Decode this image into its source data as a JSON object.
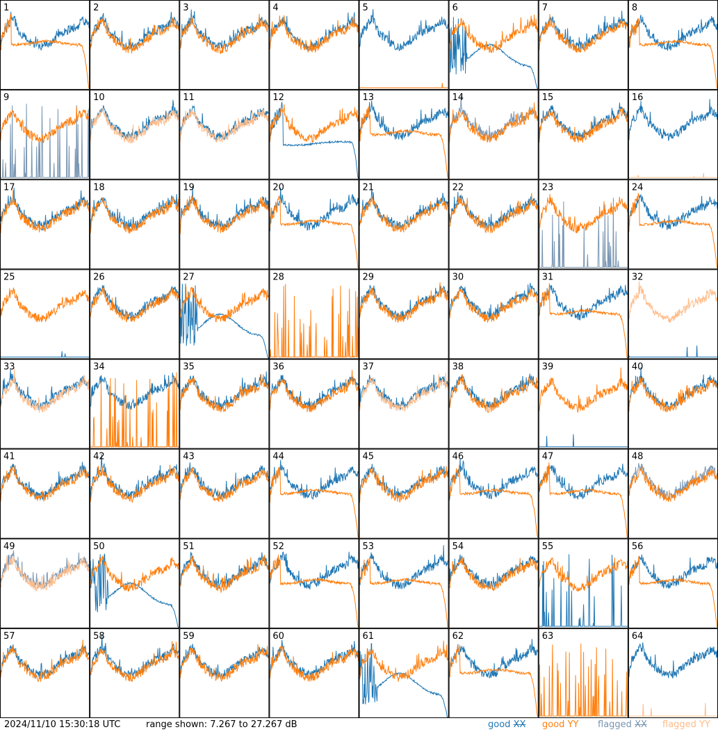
{
  "footer": {
    "timestamp": "2024/11/10 15:30:18 UTC",
    "range_text": "range shown: 7.267 to 27.267 dB"
  },
  "legend": {
    "good_xx": {
      "word": "good",
      "pol": "XX",
      "color": "#1f77b4"
    },
    "good_yy": {
      "word": "good",
      "pol": "YY",
      "color": "#ff7f0e"
    },
    "flagged_xx": {
      "word": "flagged",
      "pol": "XX",
      "color": "#7895b2"
    },
    "flagged_yy": {
      "word": "flagged",
      "pol": "YY",
      "color": "#ffbb88"
    }
  },
  "chart_data": {
    "type": "line",
    "layout": "8x8 small multiples",
    "ylim": [
      7.267,
      27.267
    ],
    "yunit": "dB",
    "panels": [
      {
        "id": 1,
        "xx": "normal",
        "yy": "rolloff",
        "xx_flag": false,
        "yy_flag": false
      },
      {
        "id": 2,
        "xx": "normal",
        "yy": "normal",
        "xx_flag": false,
        "yy_flag": false
      },
      {
        "id": 3,
        "xx": "normal",
        "yy": "normal",
        "xx_flag": false,
        "yy_flag": false
      },
      {
        "id": 4,
        "xx": "normal",
        "yy": "normal",
        "xx_flag": false,
        "yy_flag": false
      },
      {
        "id": 5,
        "xx": "normal",
        "yy": "dead",
        "xx_flag": false,
        "yy_flag": false
      },
      {
        "id": 6,
        "xx": "hump",
        "yy": "normal",
        "xx_flag": false,
        "yy_flag": false
      },
      {
        "id": 7,
        "xx": "normal",
        "yy": "normal",
        "xx_flag": false,
        "yy_flag": false
      },
      {
        "id": 8,
        "xx": "normal",
        "yy": "rolloff",
        "xx_flag": false,
        "yy_flag": false
      },
      {
        "id": 9,
        "xx": "spiky",
        "yy": "normal",
        "xx_flag": true,
        "yy_flag": false
      },
      {
        "id": 10,
        "xx": "normal",
        "yy": "normal",
        "xx_flag": false,
        "yy_flag": true
      },
      {
        "id": 11,
        "xx": "normal",
        "yy": "normal",
        "xx_flag": false,
        "yy_flag": true
      },
      {
        "id": 12,
        "xx": "flat",
        "yy": "normal",
        "xx_flag": false,
        "yy_flag": false
      },
      {
        "id": 13,
        "xx": "normal",
        "yy": "rolloff",
        "xx_flag": false,
        "yy_flag": false
      },
      {
        "id": 14,
        "xx": "normal",
        "yy": "normal",
        "xx_flag": true,
        "yy_flag": false
      },
      {
        "id": 15,
        "xx": "normal",
        "yy": "normal",
        "xx_flag": false,
        "yy_flag": false
      },
      {
        "id": 16,
        "xx": "normal",
        "yy": "dead",
        "xx_flag": false,
        "yy_flag": true
      },
      {
        "id": 17,
        "xx": "normal",
        "yy": "normal",
        "xx_flag": false,
        "yy_flag": false
      },
      {
        "id": 18,
        "xx": "normal",
        "yy": "normal",
        "xx_flag": false,
        "yy_flag": false
      },
      {
        "id": 19,
        "xx": "normal",
        "yy": "normal",
        "xx_flag": false,
        "yy_flag": false
      },
      {
        "id": 20,
        "xx": "normal",
        "yy": "rolloff",
        "xx_flag": false,
        "yy_flag": false
      },
      {
        "id": 21,
        "xx": "normal",
        "yy": "normal",
        "xx_flag": false,
        "yy_flag": false
      },
      {
        "id": 22,
        "xx": "normal",
        "yy": "normal",
        "xx_flag": false,
        "yy_flag": false
      },
      {
        "id": 23,
        "xx": "spiky",
        "yy": "normal",
        "xx_flag": true,
        "yy_flag": false
      },
      {
        "id": 24,
        "xx": "normal",
        "yy": "rolloff",
        "xx_flag": false,
        "yy_flag": false
      },
      {
        "id": 25,
        "xx": "dead",
        "yy": "normal",
        "xx_flag": false,
        "yy_flag": false
      },
      {
        "id": 26,
        "xx": "normal",
        "yy": "normal",
        "xx_flag": false,
        "yy_flag": false
      },
      {
        "id": 27,
        "xx": "hump",
        "yy": "normal",
        "xx_flag": false,
        "yy_flag": false
      },
      {
        "id": 28,
        "xx": "none",
        "yy": "spiky",
        "xx_flag": false,
        "yy_flag": false
      },
      {
        "id": 29,
        "xx": "normal",
        "yy": "normal",
        "xx_flag": false,
        "yy_flag": false
      },
      {
        "id": 30,
        "xx": "normal",
        "yy": "normal",
        "xx_flag": false,
        "yy_flag": false
      },
      {
        "id": 31,
        "xx": "normal",
        "yy": "rolloff",
        "xx_flag": false,
        "yy_flag": false
      },
      {
        "id": 32,
        "xx": "dead",
        "yy": "normal",
        "xx_flag": false,
        "yy_flag": true
      },
      {
        "id": 33,
        "xx": "normal",
        "yy": "normal",
        "xx_flag": false,
        "yy_flag": true
      },
      {
        "id": 34,
        "xx": "normal",
        "yy": "spiky",
        "xx_flag": false,
        "yy_flag": false
      },
      {
        "id": 35,
        "xx": "normal",
        "yy": "normal",
        "xx_flag": false,
        "yy_flag": false
      },
      {
        "id": 36,
        "xx": "normal",
        "yy": "normal",
        "xx_flag": false,
        "yy_flag": false
      },
      {
        "id": 37,
        "xx": "normal",
        "yy": "normal",
        "xx_flag": false,
        "yy_flag": true
      },
      {
        "id": 38,
        "xx": "normal",
        "yy": "normal",
        "xx_flag": false,
        "yy_flag": false
      },
      {
        "id": 39,
        "xx": "dead",
        "yy": "normal",
        "xx_flag": false,
        "yy_flag": false
      },
      {
        "id": 40,
        "xx": "normal",
        "yy": "normal",
        "xx_flag": false,
        "yy_flag": false
      },
      {
        "id": 41,
        "xx": "normal",
        "yy": "normal",
        "xx_flag": false,
        "yy_flag": false
      },
      {
        "id": 42,
        "xx": "normal",
        "yy": "normal",
        "xx_flag": false,
        "yy_flag": false
      },
      {
        "id": 43,
        "xx": "normal",
        "yy": "normal",
        "xx_flag": false,
        "yy_flag": false
      },
      {
        "id": 44,
        "xx": "normal",
        "yy": "rolloff",
        "xx_flag": false,
        "yy_flag": false
      },
      {
        "id": 45,
        "xx": "normal",
        "yy": "normal",
        "xx_flag": false,
        "yy_flag": false
      },
      {
        "id": 46,
        "xx": "normal",
        "yy": "rolloff",
        "xx_flag": false,
        "yy_flag": false
      },
      {
        "id": 47,
        "xx": "normal",
        "yy": "rolloff",
        "xx_flag": false,
        "yy_flag": false
      },
      {
        "id": 48,
        "xx": "normal",
        "yy": "normal",
        "xx_flag": true,
        "yy_flag": false
      },
      {
        "id": 49,
        "xx": "normal",
        "yy": "normal",
        "xx_flag": true,
        "yy_flag": true
      },
      {
        "id": 50,
        "xx": "hump",
        "yy": "normal",
        "xx_flag": false,
        "yy_flag": false
      },
      {
        "id": 51,
        "xx": "normal",
        "yy": "normal",
        "xx_flag": false,
        "yy_flag": false
      },
      {
        "id": 52,
        "xx": "normal",
        "yy": "rolloff",
        "xx_flag": false,
        "yy_flag": false
      },
      {
        "id": 53,
        "xx": "normal",
        "yy": "rolloff",
        "xx_flag": false,
        "yy_flag": false
      },
      {
        "id": 54,
        "xx": "normal",
        "yy": "normal",
        "xx_flag": false,
        "yy_flag": false
      },
      {
        "id": 55,
        "xx": "spiky",
        "yy": "normal",
        "xx_flag": false,
        "yy_flag": false
      },
      {
        "id": 56,
        "xx": "normal",
        "yy": "rolloff",
        "xx_flag": false,
        "yy_flag": false
      },
      {
        "id": 57,
        "xx": "normal",
        "yy": "normal",
        "xx_flag": false,
        "yy_flag": false
      },
      {
        "id": 58,
        "xx": "normal",
        "yy": "normal",
        "xx_flag": false,
        "yy_flag": false
      },
      {
        "id": 59,
        "xx": "normal",
        "yy": "normal",
        "xx_flag": false,
        "yy_flag": false
      },
      {
        "id": 60,
        "xx": "normal",
        "yy": "normal",
        "xx_flag": false,
        "yy_flag": false
      },
      {
        "id": 61,
        "xx": "hump",
        "yy": "normal",
        "xx_flag": false,
        "yy_flag": false
      },
      {
        "id": 62,
        "xx": "normal",
        "yy": "rolloff",
        "xx_flag": false,
        "yy_flag": false
      },
      {
        "id": 63,
        "xx": "none",
        "yy": "spiky",
        "xx_flag": false,
        "yy_flag": false
      },
      {
        "id": 64,
        "xx": "normal",
        "yy": "dead",
        "xx_flag": false,
        "yy_flag": true
      }
    ]
  }
}
